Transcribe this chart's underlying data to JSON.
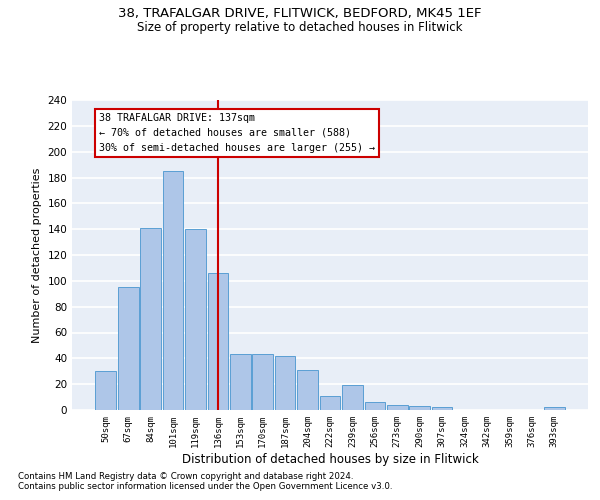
{
  "title_line1": "38, TRAFALGAR DRIVE, FLITWICK, BEDFORD, MK45 1EF",
  "title_line2": "Size of property relative to detached houses in Flitwick",
  "xlabel": "Distribution of detached houses by size in Flitwick",
  "ylabel": "Number of detached properties",
  "bar_labels": [
    "50sqm",
    "67sqm",
    "84sqm",
    "101sqm",
    "119sqm",
    "136sqm",
    "153sqm",
    "170sqm",
    "187sqm",
    "204sqm",
    "222sqm",
    "239sqm",
    "256sqm",
    "273sqm",
    "290sqm",
    "307sqm",
    "324sqm",
    "342sqm",
    "359sqm",
    "376sqm",
    "393sqm"
  ],
  "bar_values": [
    30,
    95,
    141,
    185,
    140,
    106,
    43,
    43,
    42,
    31,
    11,
    19,
    6,
    4,
    3,
    2,
    0,
    0,
    0,
    0,
    2
  ],
  "bar_color": "#aec6e8",
  "bar_edge_color": "#5a9fd4",
  "vline_index": 5,
  "vline_color": "#cc0000",
  "annotation_text": "38 TRAFALGAR DRIVE: 137sqm\n← 70% of detached houses are smaller (588)\n30% of semi-detached houses are larger (255) →",
  "annotation_box_color": "white",
  "annotation_box_edge": "#cc0000",
  "ylim": [
    0,
    240
  ],
  "yticks": [
    0,
    20,
    40,
    60,
    80,
    100,
    120,
    140,
    160,
    180,
    200,
    220,
    240
  ],
  "background_color": "#e8eef7",
  "grid_color": "white",
  "footnote1": "Contains HM Land Registry data © Crown copyright and database right 2024.",
  "footnote2": "Contains public sector information licensed under the Open Government Licence v3.0."
}
